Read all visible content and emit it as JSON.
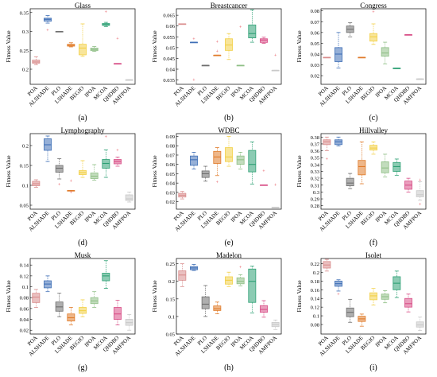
{
  "methods": [
    "POA",
    "ALSHADE",
    "PLO",
    "LSHADE",
    "BEGJO",
    "IPOA",
    "MCOA",
    "QHDBO",
    "AMFPOA"
  ],
  "colors": [
    "#d98c8c",
    "#3f6fb6",
    "#6e6e6e",
    "#e07b2a",
    "#f2d047",
    "#8fbf86",
    "#2da074",
    "#d84f87",
    "#c9c9c9"
  ],
  "chart_data": [
    {
      "type": "box",
      "title": "Glass",
      "ylabel": "Fitness Value",
      "panel_label": "(a)",
      "ylim": [
        0.16,
        0.36
      ],
      "yticks": [
        0.2,
        0.25,
        0.3,
        0.35
      ],
      "yticklabels": [
        "0.2",
        "0.25",
        "0.3",
        "0.35"
      ],
      "boxes": [
        {
          "min": 0.212,
          "q1": 0.216,
          "median": 0.219,
          "q3": 0.224,
          "max": 0.233,
          "outliers": []
        },
        {
          "min": 0.322,
          "q1": 0.327,
          "median": 0.332,
          "q3": 0.335,
          "max": 0.342,
          "outliers": [
            0.303
          ]
        },
        {
          "min": 0.3,
          "q1": 0.3,
          "median": 0.3,
          "q3": 0.3,
          "max": 0.3,
          "outliers": []
        },
        {
          "min": 0.259,
          "q1": 0.261,
          "median": 0.263,
          "q3": 0.266,
          "max": 0.27,
          "outliers": []
        },
        {
          "min": 0.234,
          "q1": 0.238,
          "median": 0.256,
          "q3": 0.266,
          "max": 0.32,
          "outliers": []
        },
        {
          "min": 0.247,
          "q1": 0.249,
          "median": 0.252,
          "q3": 0.256,
          "max": 0.26,
          "outliers": []
        },
        {
          "min": 0.313,
          "q1": 0.316,
          "median": 0.318,
          "q3": 0.321,
          "max": 0.324,
          "outliers": [
            0.352
          ]
        },
        {
          "min": 0.215,
          "q1": 0.215,
          "median": 0.215,
          "q3": 0.215,
          "max": 0.215,
          "outliers": [
            0.281
          ]
        },
        {
          "min": 0.172,
          "q1": 0.172,
          "median": 0.172,
          "q3": 0.172,
          "max": 0.172,
          "outliers": []
        }
      ]
    },
    {
      "type": "box",
      "title": "Breastcancer",
      "ylabel": "Fitness Value",
      "panel_label": "(b)",
      "ylim": [
        0.033,
        0.068
      ],
      "yticks": [
        0.035,
        0.04,
        0.045,
        0.05,
        0.055,
        0.06,
        0.065
      ],
      "yticklabels": [
        "0.035",
        "0.04",
        "0.045",
        "0.05",
        "0.055",
        "0.06",
        "0.065"
      ],
      "boxes": [
        {
          "min": 0.061,
          "q1": 0.061,
          "median": 0.061,
          "q3": 0.061,
          "max": 0.061,
          "outliers": []
        },
        {
          "min": 0.0525,
          "q1": 0.0525,
          "median": 0.0525,
          "q3": 0.0525,
          "max": 0.0525,
          "outliers": [
            0.054,
            0.035
          ]
        },
        {
          "min": 0.0418,
          "q1": 0.0418,
          "median": 0.0418,
          "q3": 0.0418,
          "max": 0.0418,
          "outliers": []
        },
        {
          "min": 0.0465,
          "q1": 0.0465,
          "median": 0.0465,
          "q3": 0.0465,
          "max": 0.0465,
          "outliers": [
            0.0528,
            0.0482
          ]
        },
        {
          "min": 0.0445,
          "q1": 0.0487,
          "median": 0.0512,
          "q3": 0.0541,
          "max": 0.0565,
          "outliers": []
        },
        {
          "min": 0.0418,
          "q1": 0.0418,
          "median": 0.0418,
          "q3": 0.0418,
          "max": 0.0418,
          "outliers": [
            0.0595
          ]
        },
        {
          "min": 0.0525,
          "q1": 0.0545,
          "median": 0.0565,
          "q3": 0.0605,
          "max": 0.0675,
          "outliers": []
        },
        {
          "min": 0.052,
          "q1": 0.0524,
          "median": 0.0535,
          "q3": 0.0541,
          "max": 0.0548,
          "outliers": []
        },
        {
          "min": 0.0395,
          "q1": 0.0395,
          "median": 0.0395,
          "q3": 0.0395,
          "max": 0.0395,
          "outliers": [
            0.0465
          ]
        }
      ]
    },
    {
      "type": "box",
      "title": "Congress",
      "ylabel": "Fitness Value",
      "panel_label": "(c)",
      "ylim": [
        0.012,
        0.082
      ],
      "yticks": [
        0.02,
        0.03,
        0.04,
        0.05,
        0.06,
        0.07,
        0.08
      ],
      "yticklabels": [
        "0.02",
        "0.03",
        "0.04",
        "0.05",
        "0.06",
        "0.07",
        "0.08"
      ],
      "boxes": [
        {
          "min": 0.037,
          "q1": 0.037,
          "median": 0.037,
          "q3": 0.037,
          "max": 0.037,
          "outliers": []
        },
        {
          "min": 0.027,
          "q1": 0.033,
          "median": 0.04,
          "q3": 0.046,
          "max": 0.06,
          "outliers": []
        },
        {
          "min": 0.056,
          "q1": 0.06,
          "median": 0.063,
          "q3": 0.066,
          "max": 0.069,
          "outliers": []
        },
        {
          "min": 0.037,
          "q1": 0.037,
          "median": 0.037,
          "q3": 0.037,
          "max": 0.037,
          "outliers": []
        },
        {
          "min": 0.049,
          "q1": 0.052,
          "median": 0.056,
          "q3": 0.059,
          "max": 0.068,
          "outliers": [
            0.079
          ]
        },
        {
          "min": 0.031,
          "q1": 0.038,
          "median": 0.041,
          "q3": 0.046,
          "max": 0.051,
          "outliers": []
        },
        {
          "min": 0.027,
          "q1": 0.027,
          "median": 0.027,
          "q3": 0.027,
          "max": 0.027,
          "outliers": []
        },
        {
          "min": 0.058,
          "q1": 0.058,
          "median": 0.058,
          "q3": 0.058,
          "max": 0.058,
          "outliers": []
        },
        {
          "min": 0.017,
          "q1": 0.017,
          "median": 0.017,
          "q3": 0.017,
          "max": 0.017,
          "outliers": []
        }
      ]
    },
    {
      "type": "box",
      "title": "Lymphography",
      "ylabel": "Fitness Value",
      "panel_label": "(d)",
      "ylim": [
        0.04,
        0.23
      ],
      "yticks": [
        0.05,
        0.1,
        0.15,
        0.2
      ],
      "yticklabels": [
        "0.05",
        "0.1",
        "0.15",
        "0.2"
      ],
      "boxes": [
        {
          "min": 0.095,
          "q1": 0.099,
          "median": 0.104,
          "q3": 0.11,
          "max": 0.114,
          "outliers": []
        },
        {
          "min": 0.16,
          "q1": 0.188,
          "median": 0.202,
          "q3": 0.217,
          "max": 0.224,
          "outliers": []
        },
        {
          "min": 0.116,
          "q1": 0.133,
          "median": 0.143,
          "q3": 0.15,
          "max": 0.167,
          "outliers": [
            0.102
          ]
        },
        {
          "min": 0.087,
          "q1": 0.087,
          "median": 0.087,
          "q3": 0.087,
          "max": 0.087,
          "outliers": [
            0.111,
            0.082
          ]
        },
        {
          "min": 0.12,
          "q1": 0.127,
          "median": 0.132,
          "q3": 0.137,
          "max": 0.162,
          "outliers": []
        },
        {
          "min": 0.113,
          "q1": 0.117,
          "median": 0.123,
          "q3": 0.131,
          "max": 0.152,
          "outliers": []
        },
        {
          "min": 0.12,
          "q1": 0.143,
          "median": 0.155,
          "q3": 0.165,
          "max": 0.189,
          "outliers": [
            0.222
          ]
        },
        {
          "min": 0.148,
          "q1": 0.154,
          "median": 0.16,
          "q3": 0.165,
          "max": 0.171,
          "outliers": [
            0.188
          ]
        },
        {
          "min": 0.058,
          "q1": 0.062,
          "median": 0.066,
          "q3": 0.076,
          "max": 0.083,
          "outliers": []
        }
      ]
    },
    {
      "type": "box",
      "title": "WDBC",
      "ylabel": "Fitness Value",
      "panel_label": "(e)",
      "ylim": [
        0.012,
        0.093
      ],
      "yticks": [
        0.02,
        0.03,
        0.04,
        0.05,
        0.06,
        0.07,
        0.08,
        0.09
      ],
      "yticklabels": [
        "0.02",
        "0.03",
        "0.04",
        "0.05",
        "0.06",
        "0.07",
        "0.08",
        "0.09"
      ],
      "boxes": [
        {
          "min": 0.023,
          "q1": 0.025,
          "median": 0.027,
          "q3": 0.029,
          "max": 0.031,
          "outliers": []
        },
        {
          "min": 0.055,
          "q1": 0.059,
          "median": 0.065,
          "q3": 0.069,
          "max": 0.073,
          "outliers": []
        },
        {
          "min": 0.042,
          "q1": 0.046,
          "median": 0.05,
          "q3": 0.053,
          "max": 0.058,
          "outliers": []
        },
        {
          "min": 0.048,
          "q1": 0.061,
          "median": 0.068,
          "q3": 0.074,
          "max": 0.078,
          "outliers": [
            0.041
          ]
        },
        {
          "min": 0.058,
          "q1": 0.063,
          "median": 0.068,
          "q3": 0.078,
          "max": 0.09,
          "outliers": []
        },
        {
          "min": 0.055,
          "q1": 0.06,
          "median": 0.065,
          "q3": 0.069,
          "max": 0.073,
          "outliers": []
        },
        {
          "min": 0.039,
          "q1": 0.052,
          "median": 0.06,
          "q3": 0.075,
          "max": 0.084,
          "outliers": []
        },
        {
          "min": 0.038,
          "q1": 0.038,
          "median": 0.038,
          "q3": 0.038,
          "max": 0.038,
          "outliers": [
            0.053
          ]
        },
        {
          "min": 0.014,
          "q1": 0.014,
          "median": 0.014,
          "q3": 0.014,
          "max": 0.014,
          "outliers": [
            0.038
          ]
        }
      ]
    },
    {
      "type": "box",
      "title": "Hillvalley",
      "ylabel": "Fitness Value",
      "panel_label": "(f)",
      "ylim": [
        0.275,
        0.385
      ],
      "yticks": [
        0.28,
        0.29,
        0.3,
        0.31,
        0.32,
        0.33,
        0.34,
        0.35,
        0.36,
        0.37,
        0.38
      ],
      "yticklabels": [
        "0.28",
        "0.29",
        "0.3",
        "0.31",
        "0.32",
        "0.33",
        "0.34",
        "0.35",
        "0.36",
        "0.37",
        "0.38"
      ],
      "boxes": [
        {
          "min": 0.36,
          "q1": 0.369,
          "median": 0.373,
          "q3": 0.376,
          "max": 0.38,
          "outliers": [
            0.348
          ]
        },
        {
          "min": 0.367,
          "q1": 0.369,
          "median": 0.373,
          "q3": 0.376,
          "max": 0.38,
          "outliers": []
        },
        {
          "min": 0.305,
          "q1": 0.309,
          "median": 0.313,
          "q3": 0.32,
          "max": 0.327,
          "outliers": []
        },
        {
          "min": 0.312,
          "q1": 0.325,
          "median": 0.337,
          "q3": 0.346,
          "max": 0.373,
          "outliers": []
        },
        {
          "min": 0.355,
          "q1": 0.361,
          "median": 0.364,
          "q3": 0.368,
          "max": 0.373,
          "outliers": []
        },
        {
          "min": 0.322,
          "q1": 0.328,
          "median": 0.335,
          "q3": 0.344,
          "max": 0.355,
          "outliers": []
        },
        {
          "min": 0.324,
          "q1": 0.33,
          "median": 0.337,
          "q3": 0.343,
          "max": 0.348,
          "outliers": []
        },
        {
          "min": 0.3,
          "q1": 0.304,
          "median": 0.31,
          "q3": 0.316,
          "max": 0.32,
          "outliers": []
        },
        {
          "min": 0.288,
          "q1": 0.293,
          "median": 0.296,
          "q3": 0.302,
          "max": 0.315,
          "outliers": [
            0.282,
            0.317
          ]
        }
      ]
    },
    {
      "type": "box",
      "title": "Musk",
      "ylabel": "Fitness Value",
      "panel_label": "(g)",
      "ylim": [
        0.013,
        0.152
      ],
      "yticks": [
        0.02,
        0.04,
        0.06,
        0.08,
        0.1,
        0.12,
        0.14
      ],
      "yticklabels": [
        "0.02",
        "0.04",
        "0.06",
        "0.08",
        "0.1",
        "0.12",
        "0.14"
      ],
      "boxes": [
        {
          "min": 0.062,
          "q1": 0.071,
          "median": 0.081,
          "q3": 0.088,
          "max": 0.095,
          "outliers": []
        },
        {
          "min": 0.091,
          "q1": 0.098,
          "median": 0.105,
          "q3": 0.111,
          "max": 0.12,
          "outliers": []
        },
        {
          "min": 0.045,
          "q1": 0.055,
          "median": 0.063,
          "q3": 0.072,
          "max": 0.088,
          "outliers": []
        },
        {
          "min": 0.03,
          "q1": 0.037,
          "median": 0.043,
          "q3": 0.05,
          "max": 0.062,
          "outliers": []
        },
        {
          "min": 0.045,
          "q1": 0.051,
          "median": 0.056,
          "q3": 0.062,
          "max": 0.076,
          "outliers": []
        },
        {
          "min": 0.062,
          "q1": 0.069,
          "median": 0.074,
          "q3": 0.08,
          "max": 0.091,
          "outliers": []
        },
        {
          "min": 0.097,
          "q1": 0.111,
          "median": 0.12,
          "q3": 0.125,
          "max": 0.148,
          "outliers": []
        },
        {
          "min": 0.03,
          "q1": 0.04,
          "median": 0.05,
          "q3": 0.062,
          "max": 0.075,
          "outliers": []
        },
        {
          "min": 0.02,
          "q1": 0.029,
          "median": 0.034,
          "q3": 0.04,
          "max": 0.049,
          "outliers": []
        }
      ]
    },
    {
      "type": "box",
      "title": "Madelon",
      "ylabel": "Fitness Value",
      "panel_label": "(h)",
      "ylim": [
        0.05,
        0.265
      ],
      "yticks": [
        0.05,
        0.1,
        0.15,
        0.2,
        0.25
      ],
      "yticklabels": [
        "0.05",
        "0.1",
        "0.15",
        "0.2",
        "0.25"
      ],
      "boxes": [
        {
          "min": 0.185,
          "q1": 0.203,
          "median": 0.218,
          "q3": 0.23,
          "max": 0.25,
          "outliers": []
        },
        {
          "min": 0.231,
          "q1": 0.233,
          "median": 0.238,
          "q3": 0.242,
          "max": 0.248,
          "outliers": []
        },
        {
          "min": 0.1,
          "q1": 0.122,
          "median": 0.135,
          "q3": 0.156,
          "max": 0.188,
          "outliers": []
        },
        {
          "min": 0.108,
          "q1": 0.117,
          "median": 0.122,
          "q3": 0.13,
          "max": 0.141,
          "outliers": []
        },
        {
          "min": 0.185,
          "q1": 0.192,
          "median": 0.203,
          "q3": 0.213,
          "max": 0.226,
          "outliers": []
        },
        {
          "min": 0.187,
          "q1": 0.193,
          "median": 0.2,
          "q3": 0.21,
          "max": 0.219,
          "outliers": [
            0.24
          ]
        },
        {
          "min": 0.11,
          "q1": 0.14,
          "median": 0.2,
          "q3": 0.235,
          "max": 0.243,
          "outliers": []
        },
        {
          "min": 0.098,
          "q1": 0.112,
          "median": 0.12,
          "q3": 0.131,
          "max": 0.145,
          "outliers": []
        },
        {
          "min": 0.063,
          "q1": 0.071,
          "median": 0.077,
          "q3": 0.083,
          "max": 0.09,
          "outliers": []
        }
      ]
    },
    {
      "type": "box",
      "title": "Isolet",
      "ylabel": "Fitness Value",
      "panel_label": "(i)",
      "ylim": [
        0.058,
        0.232
      ],
      "yticks": [
        0.08,
        0.1,
        0.12,
        0.14,
        0.16,
        0.18,
        0.2,
        0.22
      ],
      "yticklabels": [
        "0.08",
        "0.1",
        "0.12",
        "0.14",
        "0.16",
        "0.18",
        "0.2",
        "0.22"
      ],
      "boxes": [
        {
          "min": 0.203,
          "q1": 0.21,
          "median": 0.217,
          "q3": 0.225,
          "max": 0.23,
          "outliers": []
        },
        {
          "min": 0.157,
          "q1": 0.168,
          "median": 0.174,
          "q3": 0.18,
          "max": 0.183,
          "outliers": [
            0.15
          ]
        },
        {
          "min": 0.085,
          "q1": 0.098,
          "median": 0.108,
          "q3": 0.118,
          "max": 0.138,
          "outliers": []
        },
        {
          "min": 0.076,
          "q1": 0.087,
          "median": 0.093,
          "q3": 0.099,
          "max": 0.104,
          "outliers": []
        },
        {
          "min": 0.125,
          "q1": 0.137,
          "median": 0.146,
          "q3": 0.153,
          "max": 0.163,
          "outliers": []
        },
        {
          "min": 0.13,
          "q1": 0.138,
          "median": 0.144,
          "q3": 0.15,
          "max": 0.158,
          "outliers": []
        },
        {
          "min": 0.142,
          "q1": 0.16,
          "median": 0.175,
          "q3": 0.19,
          "max": 0.203,
          "outliers": []
        },
        {
          "min": 0.109,
          "q1": 0.12,
          "median": 0.128,
          "q3": 0.14,
          "max": 0.15,
          "outliers": []
        },
        {
          "min": 0.066,
          "q1": 0.074,
          "median": 0.079,
          "q3": 0.086,
          "max": 0.097,
          "outliers": []
        }
      ]
    }
  ]
}
